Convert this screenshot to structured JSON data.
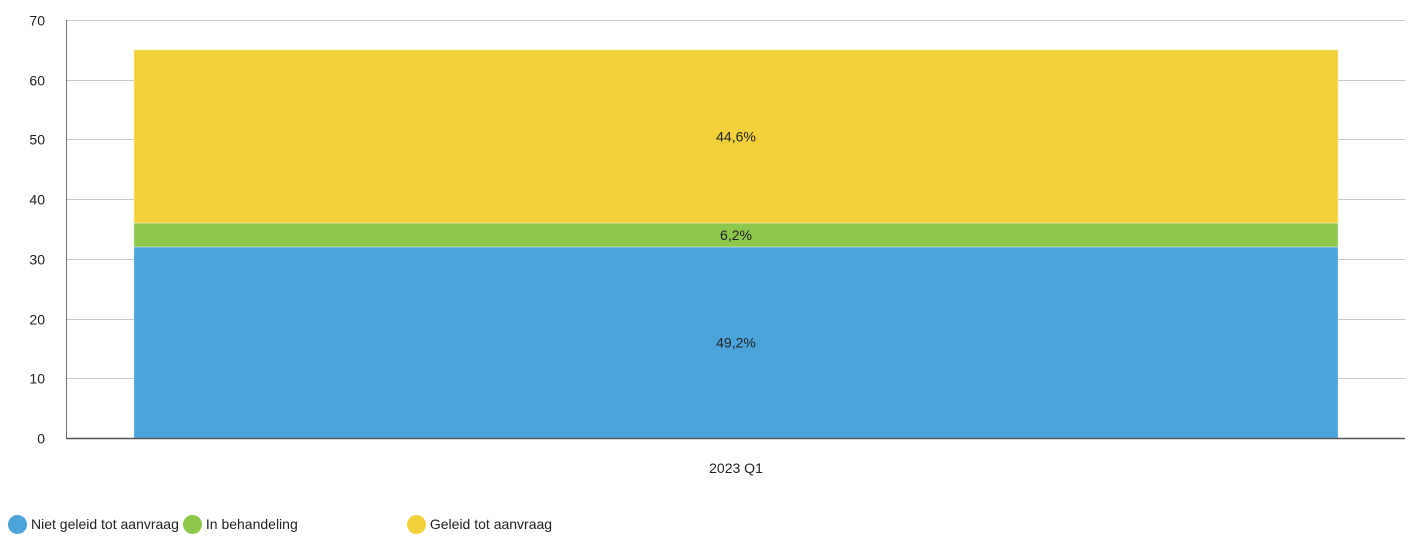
{
  "chart_data": {
    "type": "bar",
    "stacked": true,
    "categories": [
      "2023 Q1"
    ],
    "series": [
      {
        "name": "Niet geleid tot aanvraag",
        "values": [
          32
        ],
        "label": "49,2%",
        "color": "#4aa3d9"
      },
      {
        "name": "In behandeling",
        "values": [
          4
        ],
        "label": "6,2%",
        "color": "#8cc84b"
      },
      {
        "name": "Geleid tot aanvraag",
        "values": [
          29
        ],
        "label": "44,6%",
        "color": "#f2d03a"
      }
    ],
    "ylim": [
      0,
      70
    ],
    "yticks": [
      "0",
      "10",
      "20",
      "30",
      "40",
      "50",
      "60",
      "70"
    ],
    "grid": true,
    "legend_position": "bottom-left"
  },
  "legend": {
    "items": [
      {
        "label": "Niet geleid tot aanvraag",
        "color": "#4aa3d9"
      },
      {
        "label": "In behandeling",
        "color": "#8cc84b"
      },
      {
        "label": "Geleid tot aanvraag",
        "color": "#f2d03a"
      }
    ]
  }
}
